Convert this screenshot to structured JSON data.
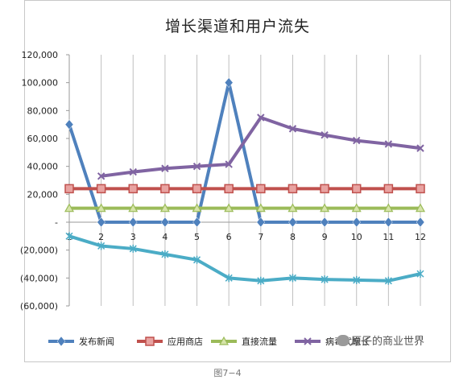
{
  "chart_data": {
    "type": "line",
    "title": "增长渠道和用户流失",
    "categories": [
      1,
      2,
      3,
      4,
      5,
      6,
      7,
      8,
      9,
      10,
      11,
      12
    ],
    "ylim": [
      -60000,
      120000
    ],
    "y_ticks": [
      120000,
      100000,
      80000,
      60000,
      40000,
      20000,
      0,
      -20000,
      -40000,
      -60000
    ],
    "y_tick_labels": [
      "120,000",
      "100,000",
      "80,000",
      "60,000",
      "40,000",
      "20,000",
      "-",
      "(20,000)",
      "(40,000)",
      "(60,000)"
    ],
    "grid": "vertical",
    "legend_position": "bottom",
    "series": [
      {
        "name": "发布新闻",
        "color": "#4f81bd",
        "marker": "diamond",
        "values": [
          70000,
          0,
          0,
          0,
          0,
          100000,
          0,
          0,
          0,
          0,
          0,
          0
        ]
      },
      {
        "name": "应用商店",
        "color": "#c0504d",
        "marker": "square",
        "values": [
          24000,
          24000,
          24000,
          24000,
          24000,
          24000,
          24000,
          24000,
          24000,
          24000,
          24000,
          24000
        ]
      },
      {
        "name": "直接流量",
        "color": "#9bbb59",
        "marker": "triangle",
        "values": [
          10000,
          10000,
          10000,
          10000,
          10000,
          10000,
          10000,
          10000,
          10000,
          10000,
          10000,
          10000
        ]
      },
      {
        "name": "病毒式增长",
        "color": "#8064a2",
        "marker": "x",
        "values": [
          null,
          33000,
          36000,
          38500,
          40000,
          41500,
          75000,
          67000,
          62500,
          58500,
          56000,
          53000
        ]
      },
      {
        "name": "",
        "color": "#4bacc6",
        "marker": "asterisk",
        "values": [
          -10000,
          -17000,
          -19000,
          -23000,
          -27000,
          -40000,
          -42000,
          -40000,
          -41000,
          -41500,
          -42000,
          -37000
        ]
      }
    ]
  },
  "caption": "图7−4",
  "watermark": "原子的商业世界"
}
